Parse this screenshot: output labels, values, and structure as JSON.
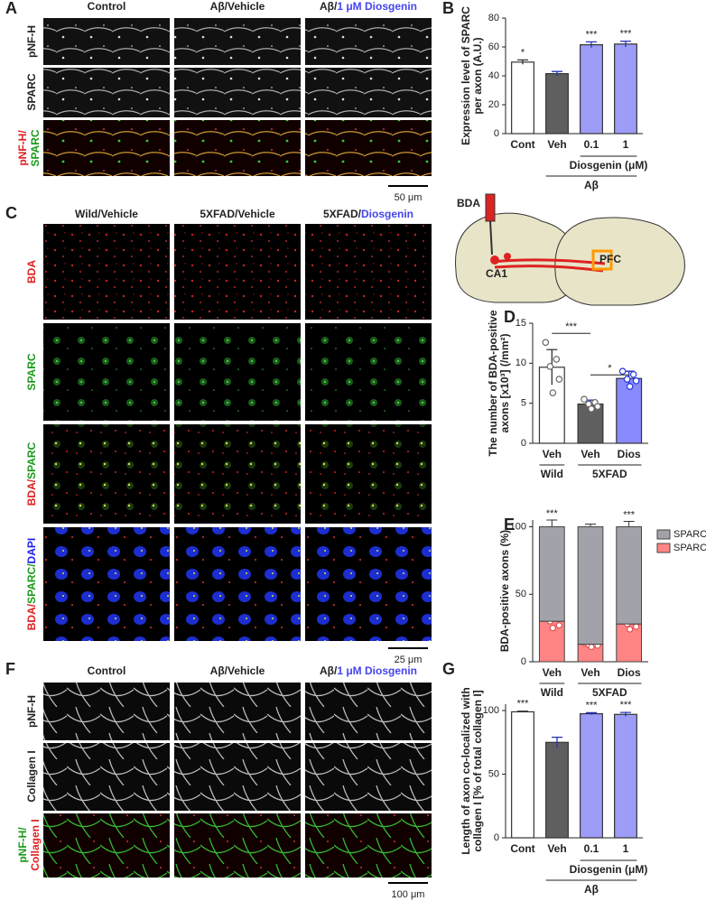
{
  "figure": {
    "panels": [
      "A",
      "B",
      "C",
      "D",
      "E",
      "F",
      "G"
    ],
    "a": {
      "columns": [
        "Control",
        "Aβ/Vehicle"
      ],
      "col3": [
        "Aβ/",
        "1 μM Diosgenin"
      ],
      "rows": [
        "pNF-H",
        "SPARC"
      ],
      "merge_row": [
        "pNF-H/",
        "SPARC"
      ],
      "scale": "50 μm"
    },
    "c": {
      "columns": [
        "Wild/Vehicle",
        "5XFAD/Vehicle"
      ],
      "col3": [
        "5XFAD/",
        "Diosgenin"
      ],
      "rows": [
        "BDA",
        "SPARC"
      ],
      "row3": [
        "BDA/",
        "SPARC"
      ],
      "row4": [
        "BDA/",
        "SPARC/",
        "DAPI"
      ],
      "scale": "25 μm"
    },
    "schematic": {
      "inject": "BDA",
      "source": "CA1",
      "target": "PFC"
    },
    "f": {
      "columns": [
        "Control",
        "Aβ/Vehicle"
      ],
      "col3": [
        "Aβ/",
        "1 μM Diosgenin"
      ],
      "rows": [
        "pNF-H",
        "Collagen I"
      ],
      "merge_row": [
        "pNF-H/",
        "Collagen I"
      ],
      "scale": "100 μm"
    }
  },
  "chart_data": [
    {
      "type": "bar",
      "ylabel": [
        "Expression level of SPARC",
        "per axon (A.U.)"
      ],
      "categories": [
        "Cont",
        "Veh",
        "0.1",
        "1"
      ],
      "values": [
        49.5,
        41.5,
        61.5,
        62
      ],
      "errors": [
        1.5,
        1.5,
        2,
        2
      ],
      "colors": [
        "#ffffff",
        "#5f5f5f",
        "#9d9df7",
        "#9d9df7"
      ],
      "significance": [
        "*",
        null,
        "***",
        "***"
      ],
      "group_labels": [
        "Diosgenin (μM)",
        "Aβ"
      ],
      "ylim": [
        0,
        80
      ],
      "yticks": [
        0,
        20,
        40,
        60,
        80
      ]
    },
    {
      "type": "bar",
      "ylabel": [
        "The number of BDA-positive",
        "axons [x10³] (/mm²)"
      ],
      "categories": [
        "Veh",
        "Veh",
        "Dios"
      ],
      "groups": [
        "Wild",
        "5XFAD"
      ],
      "values": [
        9.5,
        4.9,
        8.1
      ],
      "errors": [
        2.2,
        0.5,
        0.9
      ],
      "points": [
        [
          12.6,
          10.5,
          9.6,
          8.0,
          6.3
        ],
        [
          5.5,
          5.1,
          4.9,
          4.6,
          4.3
        ],
        [
          9.0,
          8.6,
          8.0,
          7.8,
          7.1
        ]
      ],
      "colors": [
        "#ffffff",
        "#5f5f5f",
        "#8a8aff"
      ],
      "brackets": [
        "***",
        "*"
      ],
      "ylim": [
        0,
        15
      ],
      "yticks": [
        0,
        5,
        10,
        15
      ]
    },
    {
      "type": "stacked_bar",
      "ylabel": [
        "BDA-positive axons (%)"
      ],
      "categories": [
        "Veh",
        "Veh",
        "Dios"
      ],
      "groups": [
        "Wild",
        "5XFAD"
      ],
      "series": [
        {
          "name": "SPARC -",
          "color": "#a2a2aa",
          "values": [
            70,
            87,
            72
          ],
          "errors": [
            5,
            2,
            4
          ],
          "significance": [
            "***",
            null,
            "***"
          ]
        },
        {
          "name": "SPARC +",
          "color": "#ff8585",
          "values": [
            30,
            13,
            28
          ],
          "points": [
            [
              34,
              32,
              30,
              27,
              25
            ],
            [
              14,
              13,
              12.5,
              12,
              11
            ],
            [
              33,
              30,
              28,
              26,
              24
            ]
          ],
          "significance": [
            "***",
            null,
            "***"
          ]
        }
      ],
      "ylim": [
        0,
        105
      ],
      "yticks": [
        0,
        50,
        100
      ]
    },
    {
      "type": "bar",
      "ylabel": [
        "Length of axon co-localized with",
        "collagen I [% of total collagen I]"
      ],
      "categories": [
        "Cont",
        "Veh",
        "0.1",
        "1"
      ],
      "values": [
        99,
        75,
        97.5,
        97
      ],
      "errors": [
        0.5,
        4,
        0.8,
        1.5
      ],
      "colors": [
        "#ffffff",
        "#5f5f5f",
        "#9d9df7",
        "#9d9df7"
      ],
      "significance": [
        "***",
        null,
        "***",
        "***"
      ],
      "group_labels": [
        "Diosgenin (μM)",
        "Aβ"
      ],
      "ylim": [
        0,
        105
      ],
      "yticks": [
        0,
        50,
        100
      ]
    }
  ]
}
